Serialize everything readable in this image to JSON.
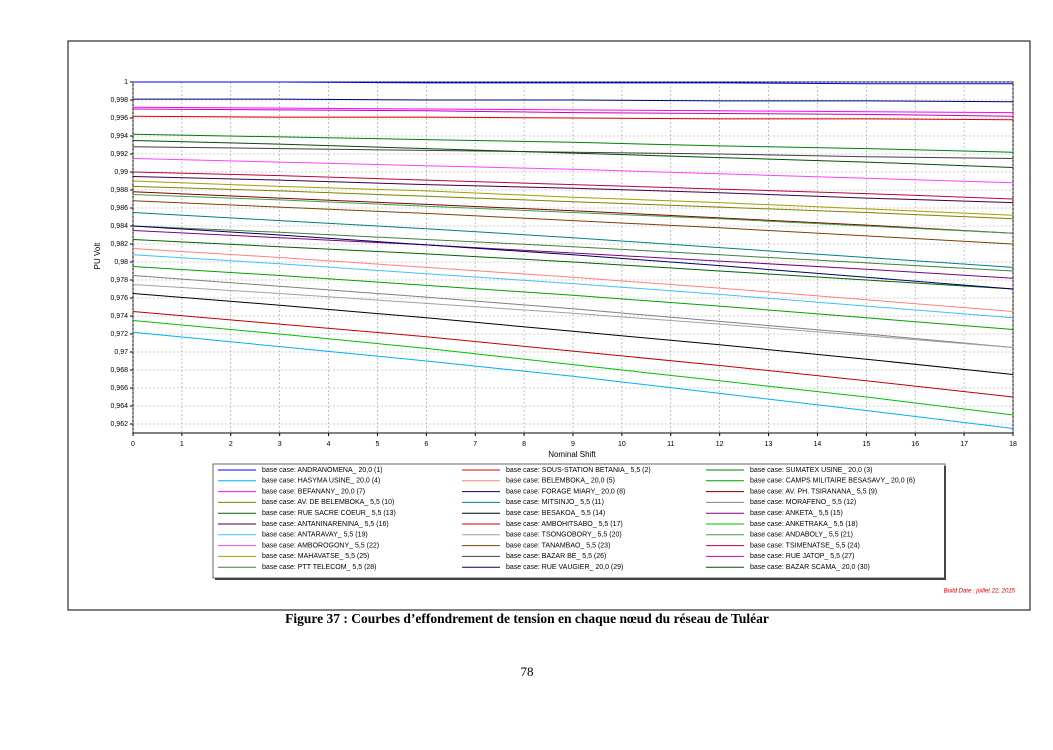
{
  "chart_data": {
    "type": "line",
    "x": [
      0,
      3,
      6,
      9,
      12,
      15,
      18
    ],
    "xlim": [
      0,
      18
    ],
    "xticks": [
      0,
      1,
      2,
      3,
      4,
      5,
      6,
      7,
      8,
      9,
      10,
      11,
      12,
      13,
      14,
      15,
      16,
      17,
      18
    ],
    "ylim": [
      0.961,
      1
    ],
    "yticks": [
      {
        "value": 0.962,
        "label": "0,962"
      },
      {
        "value": 0.964,
        "label": "0,964"
      },
      {
        "value": 0.966,
        "label": "0,966"
      },
      {
        "value": 0.968,
        "label": "0,968"
      },
      {
        "value": 0.97,
        "label": "0,97"
      },
      {
        "value": 0.972,
        "label": "0,972"
      },
      {
        "value": 0.974,
        "label": "0,974"
      },
      {
        "value": 0.976,
        "label": "0,976"
      },
      {
        "value": 0.978,
        "label": "0,978"
      },
      {
        "value": 0.98,
        "label": "0,98"
      },
      {
        "value": 0.982,
        "label": "0,982"
      },
      {
        "value": 0.984,
        "label": "0,984"
      },
      {
        "value": 0.986,
        "label": "0,986"
      },
      {
        "value": 0.988,
        "label": "0,988"
      },
      {
        "value": 0.99,
        "label": "0,99"
      },
      {
        "value": 0.992,
        "label": "0,992"
      },
      {
        "value": 0.994,
        "label": "0,994"
      },
      {
        "value": 0.996,
        "label": "0,996"
      },
      {
        "value": 0.998,
        "label": "0,998"
      },
      1
    ],
    "x_label": "Nominal Shift",
    "y_label": "PU Volt",
    "grid": true,
    "annotation": "Build Date : juillet 22, 2015",
    "series": [
      {
        "name": "base case: ANDRANOMENA_ 20,0 (1)",
        "color": "#0000ff",
        "values": [
          1,
          1,
          0.9999,
          0.9999,
          0.9999,
          0.9998,
          0.9998
        ]
      },
      {
        "name": "base case: SOUS-STATION BETANIA_ 5,5 (2)",
        "color": "#e00000",
        "values": [
          0.9962,
          0.9961,
          0.9961,
          0.996,
          0.9959,
          0.9959,
          0.9958
        ]
      },
      {
        "name": "base case: SUMATEX USINE_ 20,0 (3)",
        "color": "#008000",
        "values": [
          0.9942,
          0.9939,
          0.9936,
          0.9933,
          0.9929,
          0.9926,
          0.9922
        ]
      },
      {
        "name": "base case: HASYMA USINE_ 20,0 (4)",
        "color": "#00b0f0",
        "values": [
          0.9722,
          0.9706,
          0.969,
          0.9673,
          0.9654,
          0.9635,
          0.9615
        ]
      },
      {
        "name": "base case: BELEMBOKA_ 20,0 (5)",
        "color": "#ff8080",
        "values": [
          0.9815,
          0.9805,
          0.9794,
          0.9783,
          0.9771,
          0.9758,
          0.9745
        ]
      },
      {
        "name": "base case: CAMPS MILITAIRE BESASAVY_ 20,0 (6)",
        "color": "#00a000",
        "values": [
          0.9795,
          0.9785,
          0.9774,
          0.9763,
          0.9751,
          0.9738,
          0.9725
        ]
      },
      {
        "name": "base case: BEFANANY_ 20,0 (7)",
        "color": "#ff00ff",
        "values": [
          0.9972,
          0.9971,
          0.997,
          0.9969,
          0.9968,
          0.9967,
          0.9966
        ]
      },
      {
        "name": "base case: FORAGE MIARY_ 20,0 (8)",
        "color": "#000080",
        "values": [
          0.9981,
          0.9981,
          0.998,
          0.998,
          0.9979,
          0.9979,
          0.9978
        ]
      },
      {
        "name": "base case: AV. PH. TSIRANANA_ 5,5 (9)",
        "color": "#800000",
        "values": [
          0.9878,
          0.9871,
          0.9864,
          0.9857,
          0.9849,
          0.9841,
          0.9832
        ]
      },
      {
        "name": "base case: AV. DE BELEMBOKA_ 5,5 (10)",
        "color": "#808000",
        "values": [
          0.9884,
          0.9879,
          0.9873,
          0.9867,
          0.9861,
          0.9855,
          0.9848
        ]
      },
      {
        "name": "base case: MITSINJO_ 5,5 (11)",
        "color": "#008080",
        "values": [
          0.9855,
          0.9846,
          0.9837,
          0.9827,
          0.9816,
          0.9805,
          0.9794
        ]
      },
      {
        "name": "base case: MORAFENO_ 5,5 (12)",
        "color": "#808080",
        "values": [
          0.9785,
          0.9773,
          0.9761,
          0.9748,
          0.9734,
          0.972,
          0.9705
        ]
      },
      {
        "name": "base case: RUE SACRE COEUR_ 5,5 (13)",
        "color": "#006400",
        "values": [
          0.9825,
          0.9817,
          0.9809,
          0.98,
          0.979,
          0.978,
          0.977
        ]
      },
      {
        "name": "base case: BESAKOA_ 5,5 (14)",
        "color": "#000000",
        "values": [
          0.9765,
          0.9752,
          0.9738,
          0.9723,
          0.9708,
          0.9692,
          0.9675
        ]
      },
      {
        "name": "base case: ANKETA_ 5,5 (15)",
        "color": "#800080",
        "values": [
          0.9835,
          0.9827,
          0.9819,
          0.981,
          0.9801,
          0.9792,
          0.9782
        ]
      },
      {
        "name": "base case: ANTANINARENINA_ 5,5 (16)",
        "color": "#400040",
        "values": [
          0.9895,
          0.9891,
          0.9886,
          0.9882,
          0.9877,
          0.9871,
          0.9866
        ]
      },
      {
        "name": "base case: AMBOHITSABO_ 5,5 (17)",
        "color": "#c00000",
        "values": [
          0.9745,
          0.9731,
          0.9717,
          0.9701,
          0.9685,
          0.9668,
          0.965
        ]
      },
      {
        "name": "base case: ANKETRAKA_ 5,5 (18)",
        "color": "#00c000",
        "values": [
          0.9735,
          0.972,
          0.9704,
          0.9686,
          0.9668,
          0.965,
          0.963
        ]
      },
      {
        "name": "base case: ANTARAVAY_ 5,5 (19)",
        "color": "#40c0ff",
        "values": [
          0.9808,
          0.9798,
          0.9787,
          0.9776,
          0.9764,
          0.9751,
          0.9738
        ]
      },
      {
        "name": "base case: TSONGOBORY_ 5,5 (20)",
        "color": "#a0a0a0",
        "values": [
          0.9775,
          0.9765,
          0.9754,
          0.9743,
          0.9731,
          0.9718,
          0.9705
        ]
      },
      {
        "name": "base case: ANDABOLY_ 5,5 (21)",
        "color": "#40a040",
        "values": [
          0.9875,
          0.9869,
          0.9862,
          0.9855,
          0.9848,
          0.984,
          0.9832
        ]
      },
      {
        "name": "base case: AMBOROGONY_ 5,5 (22)",
        "color": "#ff40ff",
        "values": [
          0.9915,
          0.9911,
          0.9907,
          0.9903,
          0.9898,
          0.9893,
          0.9888
        ]
      },
      {
        "name": "base case: TANAMBAO_ 5,5 (23)",
        "color": "#804000",
        "values": [
          0.9868,
          0.9861,
          0.9854,
          0.9846,
          0.9838,
          0.9829,
          0.982
        ]
      },
      {
        "name": "base case: TSIMENATSE_ 5,5 (24)",
        "color": "#c00040",
        "values": [
          0.99,
          0.9896,
          0.9891,
          0.9886,
          0.9881,
          0.9876,
          0.987
        ]
      },
      {
        "name": "base case: MAHAVATSE_ 5,5 (25)",
        "color": "#a0a000",
        "values": [
          0.989,
          0.9884,
          0.9879,
          0.9872,
          0.9866,
          0.9859,
          0.9852
        ]
      },
      {
        "name": "base case: BAZAR BE_ 5,5 (26)",
        "color": "#404040",
        "values": [
          0.9928,
          0.9926,
          0.9924,
          0.9922,
          0.992,
          0.9917,
          0.9915
        ]
      },
      {
        "name": "base case: RUE JATOP_ 5,5 (27)",
        "color": "#c000c0",
        "values": [
          0.997,
          0.9969,
          0.9968,
          0.9966,
          0.9965,
          0.9964,
          0.9962
        ]
      },
      {
        "name": "base case: PTT TELECOM_ 5,5 (28)",
        "color": "#408040",
        "values": [
          0.984,
          0.9833,
          0.9825,
          0.9817,
          0.9808,
          0.9799,
          0.979
        ]
      },
      {
        "name": "base case: RUE VAUGIER_ 20,0 (29)",
        "color": "#000060",
        "values": [
          0.984,
          0.983,
          0.9819,
          0.9808,
          0.9796,
          0.9783,
          0.977
        ]
      },
      {
        "name": "base case: BAZAR SCAMA_ 20,0 (30)",
        "color": "#005000",
        "values": [
          0.9935,
          0.9931,
          0.9926,
          0.9921,
          0.9916,
          0.9911,
          0.9905
        ]
      }
    ]
  },
  "caption": "Figure 37 : Courbes d’effondrement de tension en chaque nœud du réseau de Tuléar",
  "page_number": "78"
}
